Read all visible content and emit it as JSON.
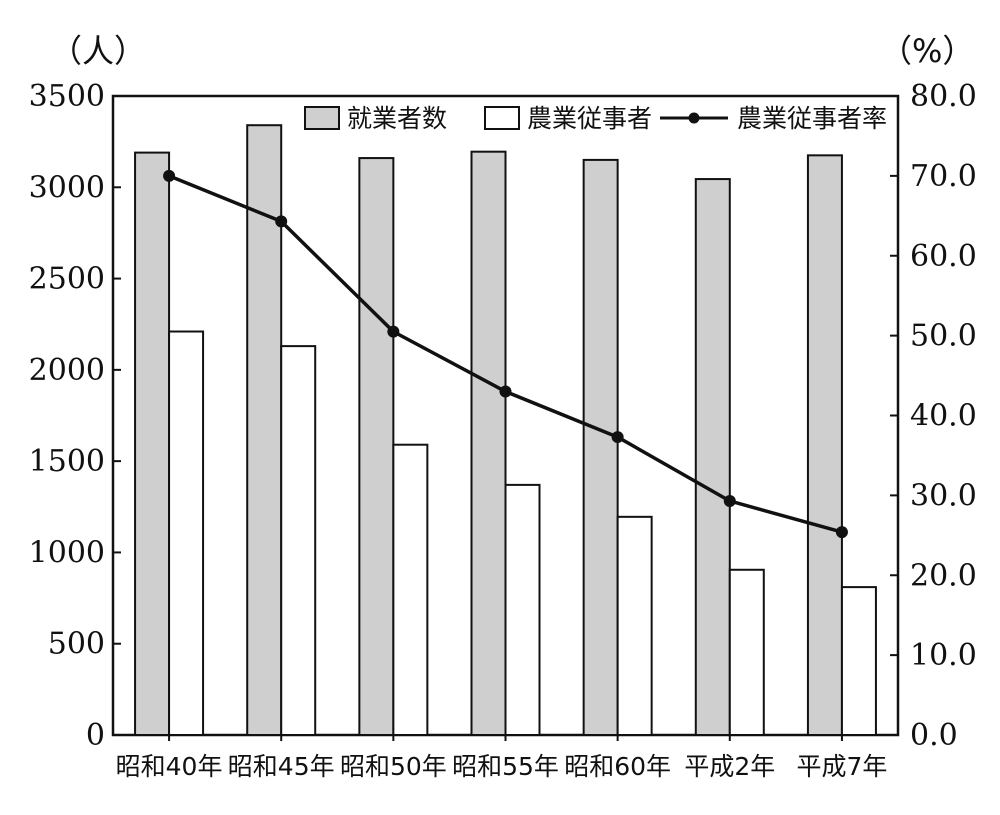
{
  "chart_data": {
    "type": "bar",
    "title": "",
    "y_left_unit": "（人）",
    "y_right_unit": "（%）",
    "ylim_left": [
      0,
      3500
    ],
    "ylim_right": [
      0,
      80
    ],
    "y_left_ticks": [
      "0",
      "500",
      "1000",
      "1500",
      "2000",
      "2500",
      "3000",
      "3500"
    ],
    "y_right_ticks": [
      "0.0",
      "10.0",
      "20.0",
      "30.0",
      "40.0",
      "50.0",
      "60.0",
      "70.0",
      "80.0"
    ],
    "categories": [
      "昭和40年",
      "昭和45年",
      "昭和50年",
      "昭和55年",
      "昭和60年",
      "平成2年",
      "平成7年"
    ],
    "series": [
      {
        "name": "就業者数",
        "kind": "bar",
        "axis": "left",
        "color": "#cfcfcf",
        "values": [
          3190,
          3340,
          3160,
          3195,
          3150,
          3045,
          3175
        ]
      },
      {
        "name": "農業従事者",
        "kind": "bar",
        "axis": "left",
        "color": "#ffffff",
        "values": [
          2210,
          2130,
          1590,
          1370,
          1195,
          905,
          810
        ]
      },
      {
        "name": "農業従事者率",
        "kind": "line",
        "axis": "right",
        "color": "#111111",
        "values": [
          70.0,
          64.3,
          50.5,
          43.0,
          37.3,
          29.3,
          25.4
        ]
      }
    ],
    "legend_position": "top-right",
    "grid": false
  }
}
